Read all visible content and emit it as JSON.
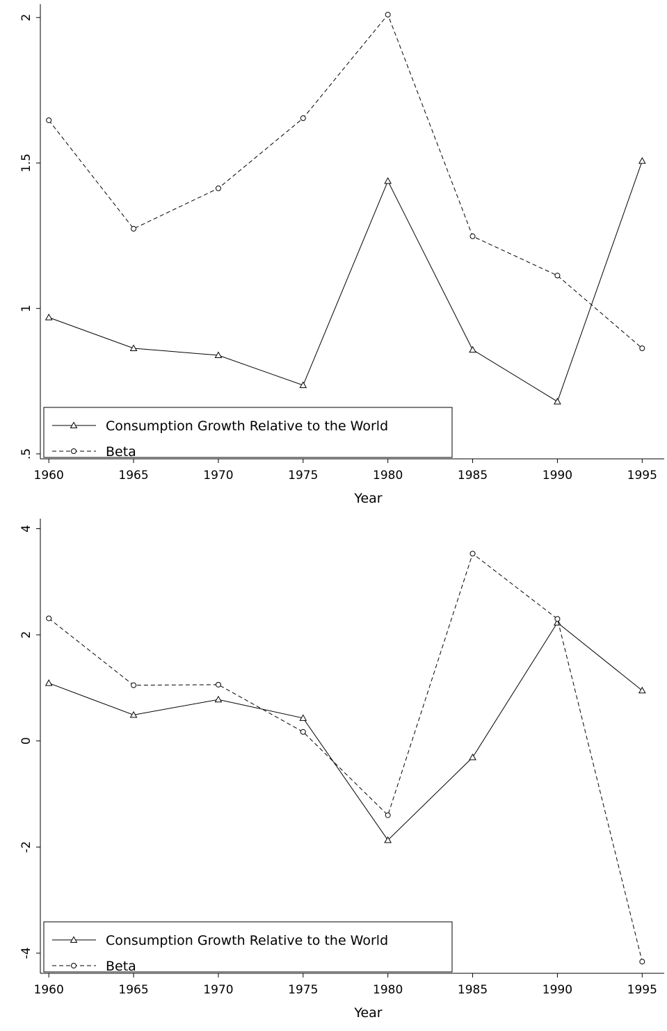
{
  "chart_data": [
    {
      "type": "line",
      "x_label": "Year",
      "x": [
        1960,
        1965,
        1970,
        1975,
        1980,
        1985,
        1990,
        1995
      ],
      "xlim": [
        1959.5,
        1996.3
      ],
      "xticks": [
        1960,
        1965,
        1970,
        1975,
        1980,
        1985,
        1990,
        1995
      ],
      "ylim": [
        0.483,
        2.046
      ],
      "yticks": [
        {
          "value": 0.5,
          "label": ".5"
        },
        1,
        1.5,
        2
      ],
      "grid": false,
      "legend": "bottom-left",
      "series": [
        {
          "name": "Consumption Growth Relative to the World",
          "color": "#000000",
          "line_style": "solid",
          "marker": "triangle",
          "values": [
            0.969,
            0.863,
            0.839,
            0.736,
            1.438,
            0.858,
            0.68,
            1.507
          ]
        },
        {
          "name": "Beta",
          "color": "#000000",
          "line_style": "dashed",
          "marker": "circle",
          "values": [
            1.647,
            1.274,
            1.413,
            1.654,
            2.01,
            1.248,
            1.113,
            0.863
          ]
        }
      ]
    },
    {
      "type": "line",
      "x_label": "Year",
      "x": [
        1960,
        1965,
        1970,
        1975,
        1980,
        1985,
        1990,
        1995
      ],
      "xlim": [
        1959.5,
        1996.3
      ],
      "xticks": [
        1960,
        1965,
        1970,
        1975,
        1980,
        1985,
        1990,
        1995
      ],
      "ylim": [
        -4.38,
        4.19
      ],
      "yticks": [
        -4,
        -2,
        0,
        2,
        4
      ],
      "grid": false,
      "legend": "bottom-left",
      "series": [
        {
          "name": "Consumption Growth Relative to the World",
          "color": "#000000",
          "line_style": "solid",
          "marker": "triangle",
          "values": [
            1.09,
            0.49,
            0.78,
            0.43,
            -1.87,
            -0.31,
            2.23,
            0.95
          ]
        },
        {
          "name": "Beta",
          "color": "#000000",
          "line_style": "dashed",
          "marker": "circle",
          "values": [
            2.31,
            1.05,
            1.06,
            0.17,
            -1.4,
            3.53,
            2.3,
            -4.16
          ]
        }
      ]
    }
  ]
}
